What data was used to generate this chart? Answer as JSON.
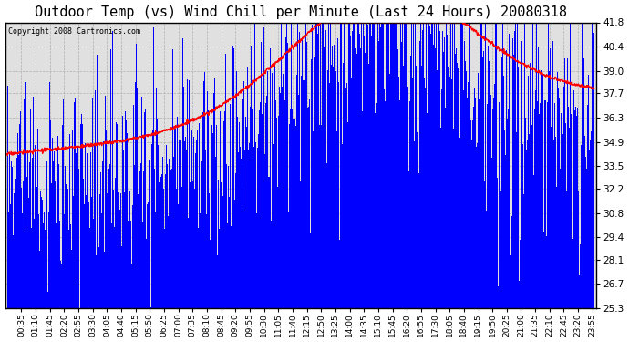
{
  "title": "Outdoor Temp (vs) Wind Chill per Minute (Last 24 Hours) 20080318",
  "copyright": "Copyright 2008 Cartronics.com",
  "ylim": [
    25.3,
    41.8
  ],
  "yticks": [
    41.8,
    40.4,
    39.0,
    37.7,
    36.3,
    34.9,
    33.5,
    32.2,
    30.8,
    29.4,
    28.1,
    26.7,
    25.3
  ],
  "bg_color": "#e0e0e0",
  "bar_color": "#0000ff",
  "line_color": "#ff0000",
  "title_fontsize": 11,
  "xlabel_fontsize": 6.5,
  "ylabel_fontsize": 7.5
}
